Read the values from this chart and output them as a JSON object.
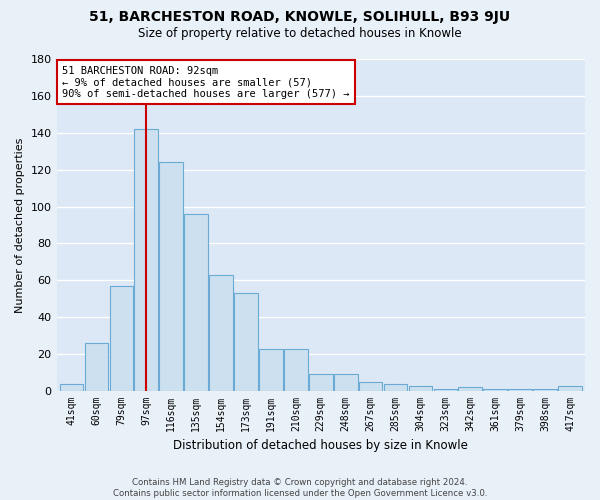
{
  "title": "51, BARCHESTON ROAD, KNOWLE, SOLIHULL, B93 9JU",
  "subtitle": "Size of property relative to detached houses in Knowle",
  "xlabel": "Distribution of detached houses by size in Knowle",
  "ylabel": "Number of detached properties",
  "bar_labels": [
    "41sqm",
    "60sqm",
    "79sqm",
    "97sqm",
    "116sqm",
    "135sqm",
    "154sqm",
    "173sqm",
    "191sqm",
    "210sqm",
    "229sqm",
    "248sqm",
    "267sqm",
    "285sqm",
    "304sqm",
    "323sqm",
    "342sqm",
    "361sqm",
    "379sqm",
    "398sqm",
    "417sqm"
  ],
  "bar_values": [
    4,
    26,
    57,
    142,
    124,
    96,
    63,
    53,
    23,
    23,
    9,
    9,
    5,
    4,
    3,
    1,
    2,
    1,
    1,
    1,
    3
  ],
  "bar_color": "#cce0f0",
  "bar_edge_color": "#6aaad4",
  "ylim": [
    0,
    180
  ],
  "yticks": [
    0,
    20,
    40,
    60,
    80,
    100,
    120,
    140,
    160,
    180
  ],
  "property_line_label": "51 BARCHESTON ROAD: 92sqm",
  "annotation_line2": "← 9% of detached houses are smaller (57)",
  "annotation_line3": "90% of semi-detached houses are larger (577) →",
  "footer_line1": "Contains HM Land Registry data © Crown copyright and database right 2024.",
  "footer_line2": "Contains public sector information licensed under the Open Government Licence v3.0.",
  "bg_color": "#e8f0f8",
  "plot_bg_color": "#dce8f5",
  "annotation_box_color": "#ffffff",
  "annotation_box_edge": "#cc0000",
  "property_line_color": "#cc0000",
  "grid_color": "#ffffff",
  "property_line_x": 2.97
}
